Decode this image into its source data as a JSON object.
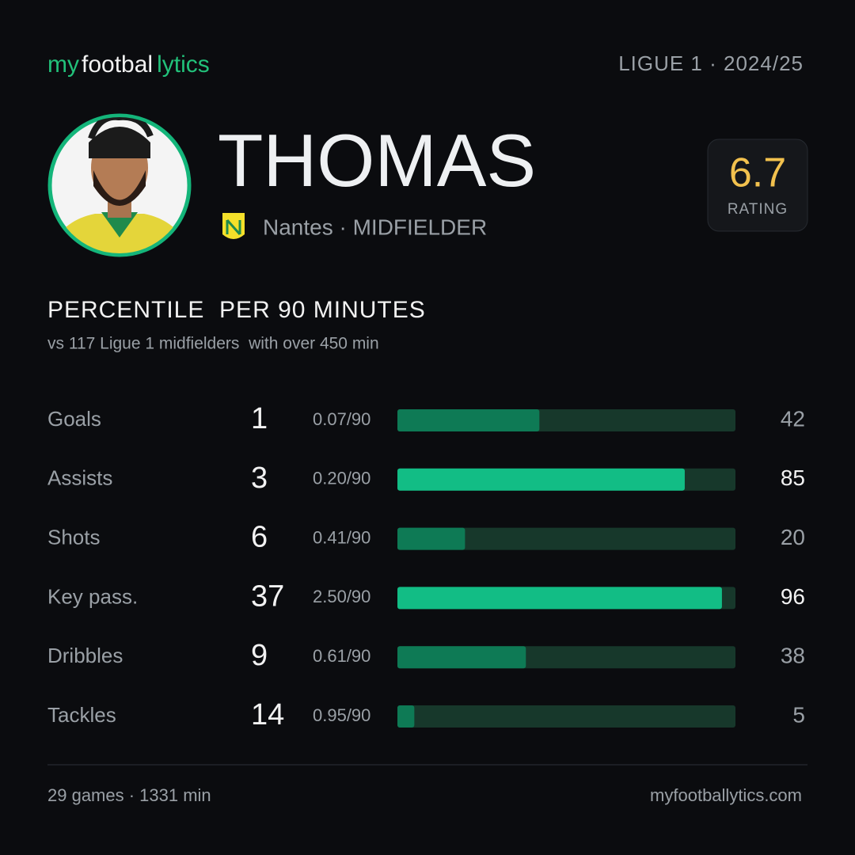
{
  "header": {
    "brand": [
      "my",
      "footbal",
      "lytics"
    ],
    "league": "LIGUE 1 · 2024/25"
  },
  "player": {
    "name": "THOMAS",
    "subtitle": "Nantes · MIDFIELDER",
    "rating": 6.7,
    "rating_label": "RATING"
  },
  "section": {
    "title": "PERCENTILE  PER 90 MINUTES",
    "subtitle": "vs 117 Ligue 1 midfielders  with over 450 min"
  },
  "stats": {
    "xlim": [
      0,
      100
    ],
    "color": "#0e7a55",
    "highlight_color": "#12bd85",
    "rows": [
      {
        "label": "Goals",
        "total": 1,
        "per90": "0.07/90",
        "percentile": 42,
        "highlight": false
      },
      {
        "label": "Assists",
        "total": 3,
        "per90": "0.20/90",
        "percentile": 85,
        "highlight": true
      },
      {
        "label": "Shots",
        "total": 6,
        "per90": "0.41/90",
        "percentile": 20,
        "highlight": false
      },
      {
        "label": "Key pass.",
        "total": 37,
        "per90": "2.50/90",
        "percentile": 96,
        "highlight": true
      },
      {
        "label": "Dribbles",
        "total": 9,
        "per90": "0.61/90",
        "percentile": 38,
        "highlight": false
      },
      {
        "label": "Tackles",
        "total": 14,
        "per90": "0.95/90",
        "percentile": 5,
        "highlight": false
      }
    ]
  },
  "footer": {
    "summary": "29 games · 1331 min",
    "site": "myfootballytics.com"
  }
}
